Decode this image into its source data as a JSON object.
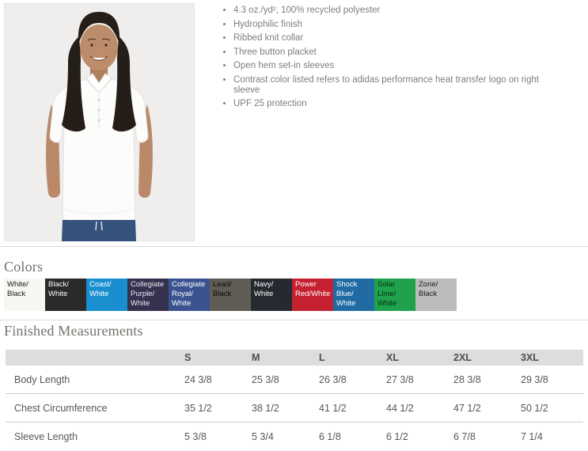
{
  "product": {
    "photo_alt": "Model wearing white short-sleeve polo shirt with navy pants",
    "features": [
      "4.3 oz./yd², 100% recycled polyester",
      "Hydrophilic finish",
      "Ribbed knit collar",
      "Three button placket",
      "Open hem set-in sleeves",
      "Contrast color listed refers to adidas performance heat transfer logo on right sleeve",
      "UPF 25 protection"
    ]
  },
  "colors_section": {
    "heading": "Colors",
    "swatches": [
      {
        "label": "White/\nBlack",
        "bg": "#f8f6f2",
        "text_color": "#1b1b1b",
        "texture": "none"
      },
      {
        "label": "Black/\nWhite",
        "bg": "#2b2a28",
        "text_color": "#fdfdfd",
        "texture": "none"
      },
      {
        "label": "Coast/\nWhite",
        "bg": "#1a8fd0",
        "text_color": "#ffffff",
        "texture": "none"
      },
      {
        "label": "Collegiate\nPurple/\nWhite",
        "bg": "#34324f",
        "text_color": "#e9e9f0",
        "texture": "dark-hatch"
      },
      {
        "label": "Collegiate\nRoyal/\nWhite",
        "bg": "#3a5390",
        "text_color": "#ffffff",
        "texture": "none"
      },
      {
        "label": "Lead/\nBlack",
        "bg": "#605c56",
        "text_color": "#0c0c0c",
        "texture": "none"
      },
      {
        "label": "Navy/\nWhite",
        "bg": "#272931",
        "text_color": "#ffffff",
        "texture": "none"
      },
      {
        "label": "Power\nRed/White",
        "bg": "#c52130",
        "text_color": "#ffffff",
        "texture": "none"
      },
      {
        "label": "Shock\nBlue/\nWhite",
        "bg": "#206ba4",
        "text_color": "#ffffff",
        "texture": "none"
      },
      {
        "label": "Solar\nLime/\nWhite",
        "bg": "#1fa24b",
        "text_color": "#062d10",
        "texture": "none"
      },
      {
        "label": "Zone/\nBlack",
        "bg": "#bcbcbe",
        "text_color": "#19191b",
        "texture": "light-hatch"
      }
    ]
  },
  "measurements": {
    "heading": "Finished Measurements",
    "columns": [
      "S",
      "M",
      "L",
      "XL",
      "2XL",
      "3XL"
    ],
    "rows": [
      {
        "label": "Body Length",
        "values": [
          "24 3/8",
          "25 3/8",
          "26 3/8",
          "27 3/8",
          "28 3/8",
          "29 3/8"
        ]
      },
      {
        "label": "Chest Circumference",
        "values": [
          "35 1/2",
          "38 1/2",
          "41 1/2",
          "44 1/2",
          "47 1/2",
          "50 1/2"
        ]
      },
      {
        "label": "Sleeve Length",
        "values": [
          "5 3/8",
          "5 3/4",
          "6 1/8",
          "6 1/2",
          "6 7/8",
          "7 1/4"
        ]
      }
    ]
  }
}
